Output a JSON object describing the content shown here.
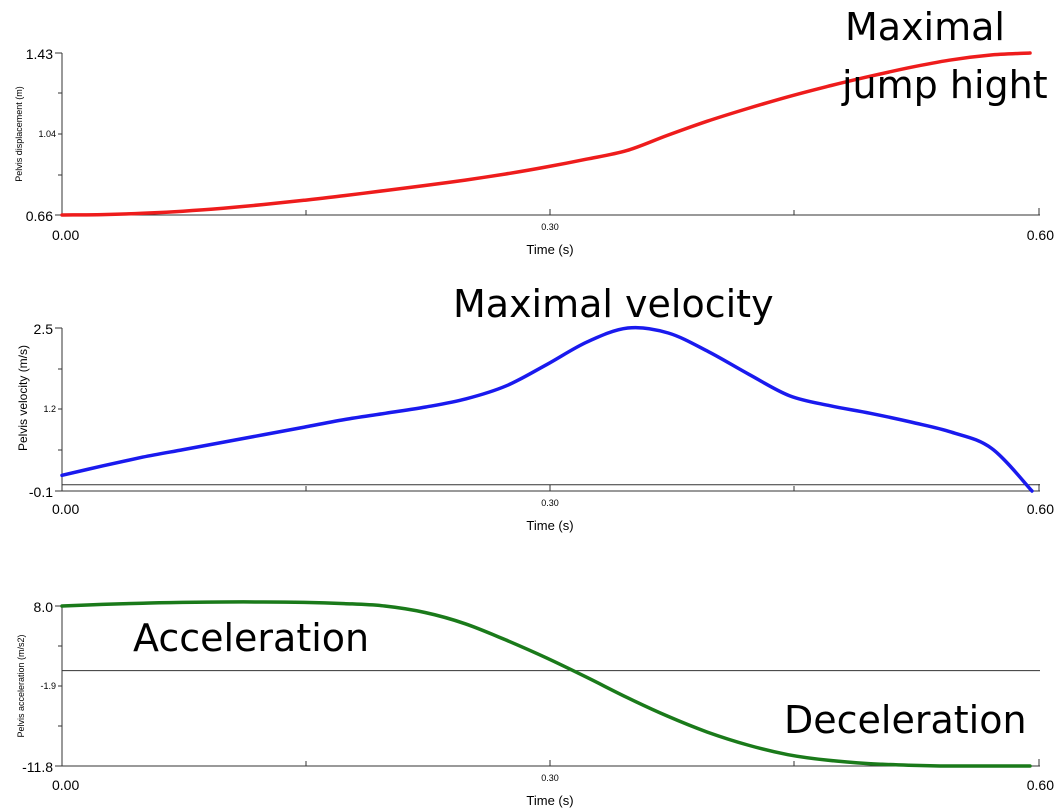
{
  "chart_data": [
    {
      "type": "line",
      "title": "",
      "xlabel": "Time (s)",
      "ylabel": "Pelvis displacement (m)",
      "xlim": [
        0.0,
        0.6
      ],
      "ylim": [
        0.66,
        1.43
      ],
      "x_ticks": [
        "0.00",
        "0.30",
        "0.60"
      ],
      "y_ticks": [
        "0.66",
        "1.04",
        "1.43"
      ],
      "grid": false,
      "series": [
        {
          "color": "#ee1c1c",
          "x": [
            0.0,
            0.025,
            0.05,
            0.075,
            0.1,
            0.125,
            0.15,
            0.175,
            0.2,
            0.225,
            0.25,
            0.275,
            0.3,
            0.325,
            0.35,
            0.375,
            0.4,
            0.425,
            0.45,
            0.475,
            0.5,
            0.525,
            0.55,
            0.575,
            0.6
          ],
          "y": [
            0.66,
            0.662,
            0.668,
            0.678,
            0.692,
            0.71,
            0.73,
            0.752,
            0.776,
            0.8,
            0.826,
            0.855,
            0.888,
            0.925,
            0.966,
            1.038,
            1.106,
            1.166,
            1.222,
            1.272,
            1.318,
            1.36,
            1.396,
            1.42,
            1.43
          ]
        }
      ],
      "annotations": [
        "Maximal",
        "jump hight"
      ]
    },
    {
      "type": "line",
      "title": "",
      "xlabel": "Time (s)",
      "ylabel": "Pelvis velocity (m/s)",
      "xlim": [
        0.0,
        0.6
      ],
      "ylim": [
        -0.1,
        2.5
      ],
      "x_ticks": [
        "0.00",
        "0.30",
        "0.60"
      ],
      "y_ticks": [
        "-0.1",
        "1.2",
        "2.5"
      ],
      "grid": false,
      "series": [
        {
          "color": "#1a1aee",
          "x": [
            0.0,
            0.025,
            0.05,
            0.075,
            0.1,
            0.125,
            0.15,
            0.175,
            0.2,
            0.225,
            0.25,
            0.275,
            0.3,
            0.325,
            0.35,
            0.375,
            0.4,
            0.425,
            0.45,
            0.475,
            0.5,
            0.525,
            0.55,
            0.575,
            0.6
          ],
          "y": [
            0.15,
            0.3,
            0.44,
            0.56,
            0.68,
            0.8,
            0.92,
            1.04,
            1.14,
            1.24,
            1.37,
            1.58,
            1.92,
            2.28,
            2.5,
            2.42,
            2.12,
            1.76,
            1.42,
            1.26,
            1.14,
            1.0,
            0.84,
            0.58,
            -0.1
          ]
        }
      ],
      "zero_line": 0.0,
      "annotations": [
        "Maximal velocity"
      ]
    },
    {
      "type": "line",
      "title": "",
      "xlabel": "Time (s)",
      "ylabel": "Pelvis acceleration (m/s2)",
      "xlim": [
        0.0,
        0.6
      ],
      "ylim": [
        -11.8,
        8.0
      ],
      "x_ticks": [
        "0.00",
        "0.30",
        "0.60"
      ],
      "y_ticks": [
        "-11.8",
        "-1.9",
        "8.0"
      ],
      "grid": false,
      "series": [
        {
          "color": "#1a7a1a",
          "x": [
            0.0,
            0.025,
            0.05,
            0.075,
            0.1,
            0.125,
            0.15,
            0.175,
            0.2,
            0.225,
            0.25,
            0.275,
            0.3,
            0.325,
            0.35,
            0.375,
            0.4,
            0.425,
            0.45,
            0.475,
            0.5,
            0.525,
            0.55,
            0.575,
            0.6
          ],
          "y": [
            8.0,
            8.2,
            8.35,
            8.45,
            8.5,
            8.5,
            8.45,
            8.3,
            8.0,
            7.2,
            5.8,
            3.8,
            1.6,
            -0.8,
            -3.3,
            -5.6,
            -7.6,
            -9.2,
            -10.4,
            -11.1,
            -11.5,
            -11.7,
            -11.8,
            -11.8,
            -11.8
          ]
        }
      ],
      "zero_line": 0.0,
      "annotations": [
        "Acceleration",
        "Deceleration"
      ]
    }
  ]
}
